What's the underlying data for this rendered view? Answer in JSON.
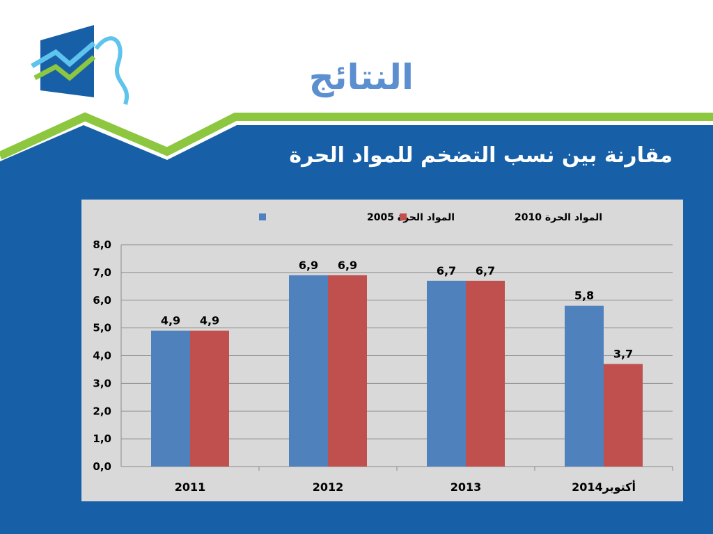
{
  "slide": {
    "title": "النتائج",
    "subtitle": "مقارنة بين نسب التضخم للمواد الحرة"
  },
  "colors": {
    "background_blue": "#1760a8",
    "accent_green": "#8dc63f",
    "title_blue": "#5b8fd0",
    "series_2005": "#4f81bd",
    "series_2010": "#c0504d",
    "chart_background": "#d9d9d9"
  },
  "chart_data": {
    "type": "bar",
    "categories": [
      "2011",
      "2012",
      "2013",
      "أكتوبر2014"
    ],
    "series": [
      {
        "name": "المواد الحرة 2005",
        "values": [
          4.9,
          6.9,
          6.7,
          5.8
        ],
        "labels": [
          "4,9",
          "6,9",
          "6,7",
          "5,8"
        ],
        "color": "#4f81bd"
      },
      {
        "name": "المواد الحرة 2010",
        "values": [
          4.9,
          6.9,
          6.7,
          3.7
        ],
        "labels": [
          "4,9",
          "6,9",
          "6,7",
          "3,7"
        ],
        "color": "#c0504d"
      }
    ],
    "ylim": [
      0,
      8
    ],
    "yticks": [
      "0,0",
      "1,0",
      "2,0",
      "3,0",
      "4,0",
      "5,0",
      "6,0",
      "7,0",
      "8,0"
    ],
    "grid": true,
    "legend": "top"
  }
}
